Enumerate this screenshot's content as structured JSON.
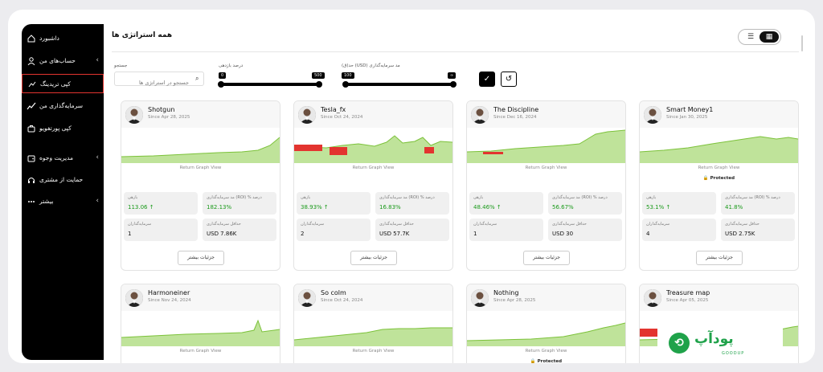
{
  "sidebar": {
    "items": [
      {
        "label": "داشبورد",
        "icon": "home-icon",
        "chevron": false,
        "active": false
      },
      {
        "label": "حساب‌های من",
        "icon": "user-icon",
        "chevron": true,
        "active": false
      },
      {
        "label": "کپی تریدینگ",
        "icon": "copy-trading-icon",
        "chevron": false,
        "active": true
      },
      {
        "label": "سرمایه‌گذاری من",
        "icon": "investment-icon",
        "chevron": false,
        "active": false
      },
      {
        "label": "کپی پورتفویو",
        "icon": "briefcase-icon",
        "chevron": false,
        "active": false
      },
      {
        "label": "مدیریت وجوه",
        "icon": "wallet-icon",
        "chevron": true,
        "active": false
      },
      {
        "label": "حمایت از مشتری",
        "icon": "headset-icon",
        "chevron": false,
        "active": false
      },
      {
        "label": "بیشتر",
        "icon": "more-dots-icon",
        "chevron": true,
        "active": false
      }
    ]
  },
  "header": {
    "title": "همه استراتژی ها"
  },
  "view_toggle": {
    "list_icon": "☰",
    "grid_icon": "▦",
    "selected": "grid"
  },
  "filters": {
    "search_label": "جستجو",
    "search_placeholder": "جستجو در استراتژی ها",
    "return_label": "درصد بازدهی",
    "return_min": "0",
    "return_max": "500",
    "roi_label": "حد(ق) (USD) مد سرمایه‌گذاری",
    "roi_min": "100",
    "roi_max": "∞",
    "apply_icon": "✓",
    "reset_icon": "↺"
  },
  "card_common": {
    "graph_label": "Return Graph View",
    "return_label": "بازهی",
    "roi_label": "درصد % (ROI) مد سرمایه‌گذاری",
    "investors_label": "سرمایه‌گذاران",
    "min_invest_label": "حداقل سرمایه‌گذاری",
    "details_label": "جزئیات بیشتر",
    "protected_label": "Protected"
  },
  "cards": [
    {
      "name": "Shotgun",
      "since": "Since Apr 28, 2025",
      "return": "113.06 ↑",
      "roi": "182.13%",
      "investors": "1",
      "min_invest": "USD 7.86K",
      "protected": false
    },
    {
      "name": "Tesla_fx",
      "since": "Since Oct 24, 2024",
      "return": "38.93% ↑",
      "roi": "16.83%",
      "investors": "2",
      "min_invest": "USD 57.7K",
      "protected": false
    },
    {
      "name": "The Discipline",
      "since": "Since Dec 16, 2024",
      "return": "48.46% ↑",
      "roi": "56.67%",
      "investors": "1",
      "min_invest": "USD 30",
      "protected": false
    },
    {
      "name": "Smart Money1",
      "since": "Since Jan 30, 2025",
      "return": "53.1% ↑",
      "roi": "41.8%",
      "investors": "4",
      "min_invest": "USD 2.75K",
      "protected": true
    },
    {
      "name": "Harmoneiner",
      "since": "Since Nov 24, 2024",
      "protected": false
    },
    {
      "name": "So colm",
      "since": "Since Oct 24, 2024",
      "protected": false
    },
    {
      "name": "Nothing",
      "since": "Since Apr 28, 2025",
      "protected": true
    },
    {
      "name": "Treasure map",
      "since": "Since Apr 05, 2025",
      "protected": false
    }
  ],
  "logo": {
    "text": "پودآپ",
    "sub": "GOODUP"
  },
  "colors": {
    "accent_green": "#7cc23a",
    "loss_red": "#e3342f",
    "sidebar_bg": "#000000",
    "brand_green": "#1fa24a"
  }
}
